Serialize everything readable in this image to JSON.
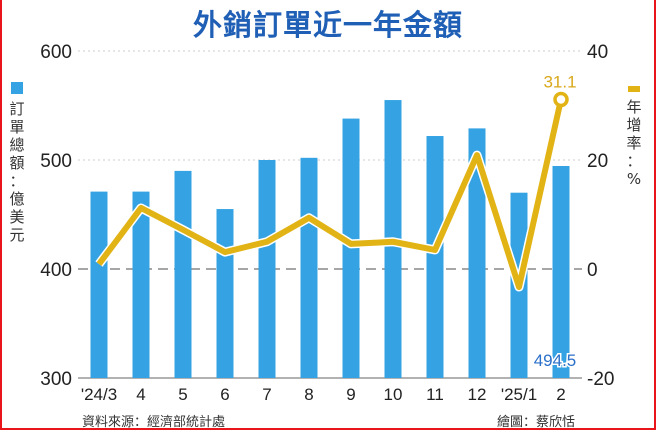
{
  "title": "外銷訂單近一年金額",
  "source": "資料來源：經濟部統計處",
  "credit": "繪圖：蔡欣恬",
  "chart_data": {
    "type": "bar+line",
    "title": "外銷訂單近一年金額",
    "categories": [
      "'24/3",
      "4",
      "5",
      "6",
      "7",
      "8",
      "9",
      "10",
      "11",
      "12",
      "'25/1",
      "2"
    ],
    "series": [
      {
        "name": "訂單總額：億美元",
        "type": "bar",
        "axis": "left",
        "color": "#35a3e3",
        "values": [
          471,
          471,
          490,
          455,
          500,
          502,
          538,
          555,
          522,
          529,
          470,
          494.5
        ]
      },
      {
        "name": "年增率：%",
        "type": "line",
        "axis": "right",
        "color": "#e2b314",
        "values": [
          0.9,
          11.2,
          7.2,
          3.1,
          5.0,
          9.4,
          4.6,
          5.0,
          3.5,
          20.9,
          -3.3,
          31.1
        ]
      }
    ],
    "left_axis": {
      "range": [
        300,
        600
      ],
      "ticks": [
        "300",
        "400",
        "500",
        "600"
      ],
      "label": "訂單總額：億美元"
    },
    "right_axis": {
      "range": [
        -20,
        40
      ],
      "ticks": [
        "-20",
        "0",
        "20",
        "40"
      ],
      "label": "年增率：%"
    },
    "annotations": [
      {
        "series": "bar",
        "index": 11,
        "text": "494.5",
        "color": "#2a6fc9"
      },
      {
        "series": "line",
        "index": 11,
        "text": "31.1",
        "color": "#d9a81a"
      }
    ],
    "grid": true
  }
}
